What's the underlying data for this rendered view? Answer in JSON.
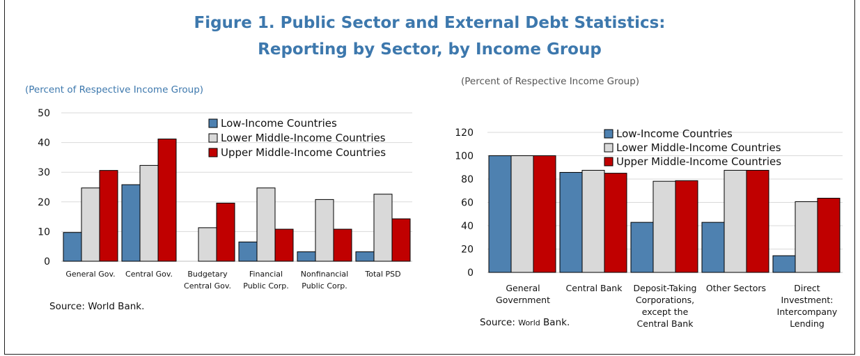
{
  "figure": {
    "title_line1": "Figure 1. Public Sector and External Debt Statistics:",
    "title_line2": "Reporting by Sector, by Income Group"
  },
  "colors": {
    "title": "#3d78ad",
    "low_income": "#4e81b0",
    "lower_middle": "#d9d9d9",
    "upper_middle": "#c00000",
    "grid": "#d9d9d9"
  },
  "chart_data": [
    {
      "type": "bar",
      "subtitle": "(Percent of Respective Income Group)",
      "source": "Source: World Bank.",
      "categories": [
        [
          "General Gov."
        ],
        [
          "Central Gov."
        ],
        [
          "Budgetary",
          "Central Gov."
        ],
        [
          "Financial",
          "Public Corp."
        ],
        [
          "Nonfinancial",
          "Public Corp."
        ],
        [
          "Total PSD"
        ]
      ],
      "series": [
        {
          "name": "Low-Income Countries",
          "values": [
            9.7,
            25.8,
            0,
            6.5,
            3.2,
            3.2
          ]
        },
        {
          "name": "Lower Middle-Income Countries",
          "values": [
            24.7,
            32.3,
            11.3,
            24.7,
            20.8,
            22.6
          ]
        },
        {
          "name": "Upper Middle-Income Countries",
          "values": [
            30.6,
            41.2,
            19.6,
            10.8,
            10.8,
            14.3
          ]
        }
      ],
      "ylim": [
        0,
        50
      ],
      "yticks": [
        0,
        10,
        20,
        30,
        40,
        50
      ],
      "grid": true,
      "legend": "top-center"
    },
    {
      "type": "bar",
      "subtitle": "(Percent of Respective Income Group)",
      "source_prefix": "Source: ",
      "source_small": "World",
      "source_suffix": " Bank.",
      "categories": [
        [
          "General",
          "Government"
        ],
        [
          "Central Bank"
        ],
        [
          "Deposit-Taking",
          "Corporations,",
          "except the",
          "Central Bank"
        ],
        [
          "Other Sectors"
        ],
        [
          "Direct",
          "Investment:",
          "Intercompany",
          "Lending"
        ]
      ],
      "series": [
        {
          "name": "Low-Income Countries",
          "values": [
            100,
            85.7,
            42.9,
            42.9,
            14.3
          ]
        },
        {
          "name": "Lower Middle-Income Countries",
          "values": [
            100,
            87.5,
            78.1,
            87.5,
            60.6
          ]
        },
        {
          "name": "Upper Middle-Income Countries",
          "values": [
            100,
            85.0,
            78.6,
            87.5,
            63.6
          ]
        }
      ],
      "ylim": [
        0,
        120
      ],
      "yticks": [
        0,
        20,
        40,
        60,
        80,
        100,
        120
      ],
      "grid": true,
      "legend": "top-right"
    }
  ]
}
